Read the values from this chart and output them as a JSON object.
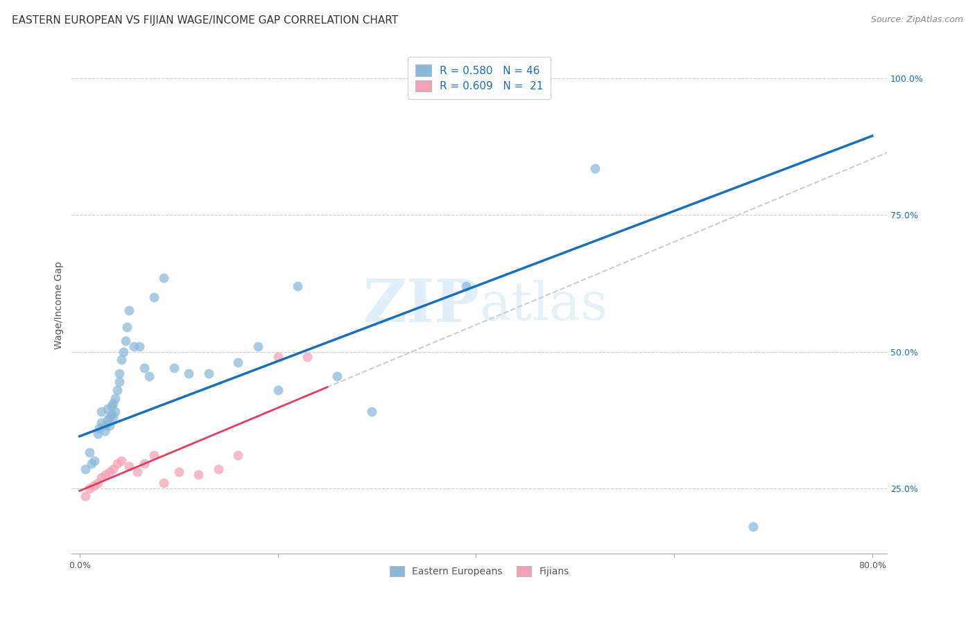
{
  "title": "EASTERN EUROPEAN VS FIJIAN WAGE/INCOME GAP CORRELATION CHART",
  "source": "Source: ZipAtlas.com",
  "ylabel": "Wage/Income Gap",
  "blue_R": "0.580",
  "blue_N": "46",
  "pink_R": "0.609",
  "pink_N": "21",
  "blue_color": "#8ab8d8",
  "pink_color": "#f4a0b5",
  "blue_line_color": "#1a6fba",
  "pink_line_color": "#e04060",
  "dashed_line_color": "#cccccc",
  "watermark_color": "#cce5f5",
  "xmin": -0.008,
  "xmax": 0.815,
  "ymin": 0.13,
  "ymax": 1.04,
  "yticks": [
    0.25,
    0.5,
    0.75,
    1.0
  ],
  "ytick_labels": [
    "25.0%",
    "50.0%",
    "75.0%",
    "100.0%"
  ],
  "xtick_positions": [
    0.0,
    0.2,
    0.4,
    0.6,
    0.8
  ],
  "xtick_labels": [
    "0.0%",
    "",
    "",
    "",
    "80.0%"
  ],
  "blue_line_x0": 0.0,
  "blue_line_y0": 0.345,
  "blue_line_x1": 0.8,
  "blue_line_y1": 0.895,
  "pink_line_x0": 0.0,
  "pink_line_y0": 0.245,
  "pink_line_x1": 0.25,
  "pink_line_y1": 0.435,
  "dashed_line_x0": 0.0,
  "dashed_line_x1": 0.815,
  "blue_points_x": [
    0.006,
    0.01,
    0.012,
    0.015,
    0.018,
    0.02,
    0.022,
    0.022,
    0.025,
    0.026,
    0.028,
    0.028,
    0.03,
    0.03,
    0.032,
    0.032,
    0.034,
    0.034,
    0.036,
    0.036,
    0.038,
    0.04,
    0.04,
    0.042,
    0.044,
    0.046,
    0.048,
    0.05,
    0.055,
    0.06,
    0.065,
    0.07,
    0.075,
    0.085,
    0.095,
    0.11,
    0.13,
    0.16,
    0.18,
    0.2,
    0.22,
    0.26,
    0.295,
    0.39,
    0.52,
    0.68
  ],
  "blue_points_y": [
    0.285,
    0.315,
    0.295,
    0.3,
    0.35,
    0.36,
    0.37,
    0.39,
    0.355,
    0.365,
    0.375,
    0.395,
    0.365,
    0.38,
    0.385,
    0.4,
    0.38,
    0.405,
    0.39,
    0.415,
    0.43,
    0.445,
    0.46,
    0.485,
    0.5,
    0.52,
    0.545,
    0.575,
    0.51,
    0.51,
    0.47,
    0.455,
    0.6,
    0.635,
    0.47,
    0.46,
    0.46,
    0.48,
    0.51,
    0.43,
    0.62,
    0.455,
    0.39,
    0.62,
    0.835,
    0.18
  ],
  "pink_points_x": [
    0.006,
    0.01,
    0.014,
    0.018,
    0.022,
    0.026,
    0.03,
    0.034,
    0.038,
    0.042,
    0.05,
    0.058,
    0.065,
    0.075,
    0.085,
    0.1,
    0.12,
    0.14,
    0.16,
    0.2,
    0.23
  ],
  "pink_points_y": [
    0.235,
    0.25,
    0.255,
    0.26,
    0.27,
    0.275,
    0.28,
    0.285,
    0.295,
    0.3,
    0.29,
    0.28,
    0.295,
    0.31,
    0.26,
    0.28,
    0.275,
    0.285,
    0.31,
    0.49,
    0.49
  ],
  "title_fontsize": 11,
  "tick_fontsize": 9,
  "legend_fontsize": 11,
  "source_fontsize": 9
}
